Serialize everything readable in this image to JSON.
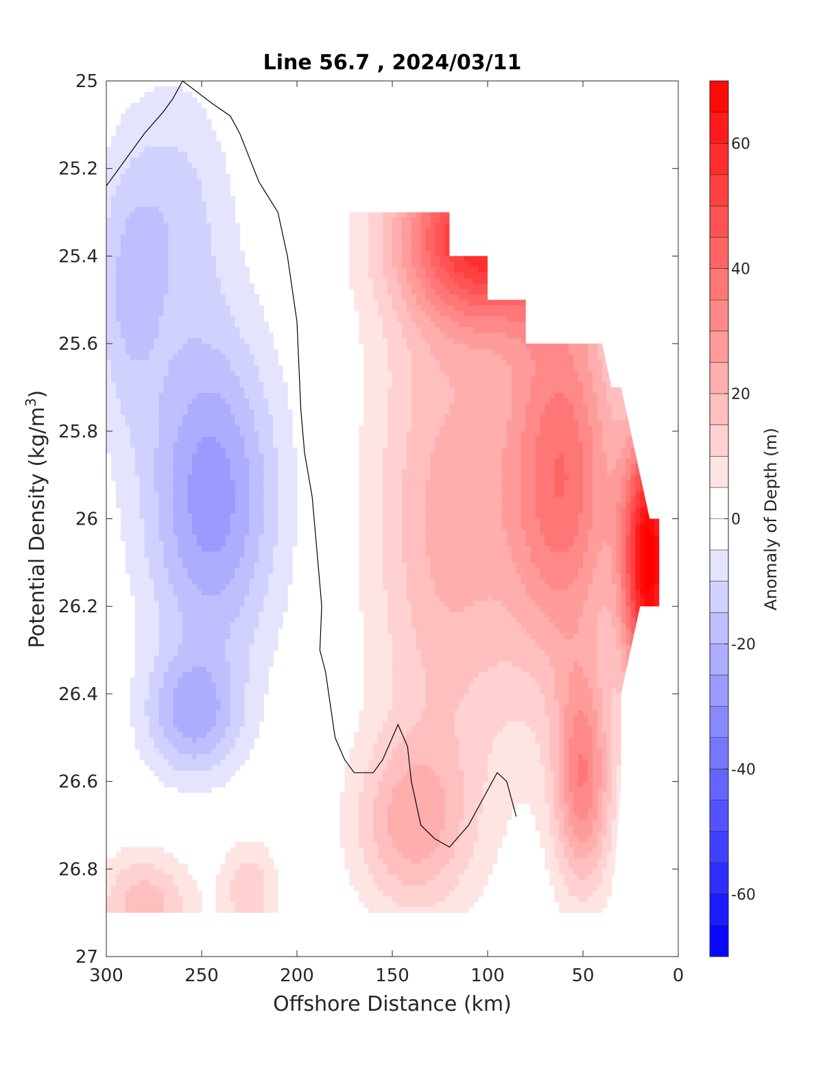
{
  "chart_data": {
    "type": "heatmap",
    "subtype": "filled-contour",
    "title": "Line 56.7 , 2024/03/11",
    "xlabel": "Offshore Distance (km)",
    "ylabel": "Potential Density (kg/m",
    "ylabel_sup": "3",
    "ylabel_end": ")",
    "colorbar_label": "Anomaly of Depth (m)",
    "x_axis": {
      "reversed": true,
      "lim": [
        0,
        300
      ],
      "ticks": [
        300,
        250,
        200,
        150,
        100,
        50,
        0
      ],
      "tick_labels": [
        "300",
        "250",
        "200",
        "150",
        "100",
        "50",
        "0"
      ]
    },
    "y_axis": {
      "reversed": true,
      "lim": [
        25,
        27
      ],
      "ticks": [
        25,
        25.2,
        25.4,
        25.6,
        25.8,
        26,
        26.2,
        26.4,
        26.6,
        26.8,
        27
      ],
      "tick_labels": [
        "25",
        "25.2",
        "25.4",
        "25.6",
        "25.8",
        "26",
        "26.2",
        "26.4",
        "26.6",
        "26.8",
        "27"
      ]
    },
    "colorbar": {
      "lim": [
        -70,
        70
      ],
      "step": 5,
      "colormap": "blue-white-red",
      "ticks": [
        -60,
        -40,
        -20,
        0,
        20,
        40,
        60
      ],
      "tick_labels": [
        "-60",
        "-40",
        "-20",
        "0",
        "20",
        "40",
        "60"
      ]
    },
    "data_coverage_outline": [
      [
        300,
        25
      ],
      [
        200,
        25
      ],
      [
        200,
        25.1
      ],
      [
        185,
        25.1
      ],
      [
        185,
        25.2
      ],
      [
        175,
        25.2
      ],
      [
        175,
        25.3
      ],
      [
        120,
        25.3
      ],
      [
        120,
        25.4
      ],
      [
        100,
        25.4
      ],
      [
        100,
        25.5
      ],
      [
        80,
        25.5
      ],
      [
        80,
        25.6
      ],
      [
        40,
        25.6
      ],
      [
        35,
        25.7
      ],
      [
        30,
        25.7
      ],
      [
        15,
        26
      ],
      [
        10,
        26
      ],
      [
        10,
        26.2
      ],
      [
        20,
        26.2
      ],
      [
        30,
        26.4
      ],
      [
        30,
        26.6
      ],
      [
        35,
        26.9
      ],
      [
        300,
        26.9
      ]
    ],
    "zero_contour": [
      [
        300,
        25.24
      ],
      [
        290,
        25.18
      ],
      [
        280,
        25.12
      ],
      [
        270,
        25.07
      ],
      [
        265,
        25.04
      ],
      [
        260,
        25.0
      ],
      [
        245,
        25.05
      ],
      [
        235,
        25.08
      ],
      [
        230,
        25.12
      ],
      [
        220,
        25.23
      ],
      [
        210,
        25.3
      ],
      [
        205,
        25.4
      ],
      [
        200,
        25.55
      ],
      [
        198,
        25.75
      ],
      [
        196,
        25.85
      ],
      [
        192,
        25.95
      ],
      [
        190,
        26.05
      ],
      [
        188,
        26.15
      ],
      [
        187,
        26.2
      ],
      [
        188,
        26.3
      ],
      [
        185,
        26.35
      ],
      [
        180,
        26.5
      ],
      [
        175,
        26.55
      ],
      [
        170,
        26.58
      ],
      [
        160,
        26.58
      ],
      [
        155,
        26.55
      ],
      [
        150,
        26.5
      ],
      [
        147,
        26.47
      ],
      [
        142,
        26.52
      ],
      [
        140,
        26.6
      ],
      [
        135,
        26.7
      ],
      [
        128,
        26.73
      ],
      [
        120,
        26.75
      ],
      [
        110,
        26.7
      ],
      [
        100,
        26.62
      ],
      [
        95,
        26.58
      ],
      [
        90,
        26.6
      ],
      [
        85,
        26.68
      ]
    ],
    "anomaly_features": [
      {
        "kind": "negative-core",
        "x": 245,
        "y": 25.95,
        "peak": -28,
        "sx": 35,
        "sy": 0.38
      },
      {
        "kind": "negative-lobe",
        "x": 255,
        "y": 26.45,
        "peak": -20,
        "sx": 25,
        "sy": 0.14
      },
      {
        "kind": "negative-shallow",
        "x": 265,
        "y": 25.3,
        "peak": -12,
        "sx": 30,
        "sy": 0.3
      },
      {
        "kind": "negative-west",
        "x": 290,
        "y": 25.5,
        "peak": -12,
        "sx": 18,
        "sy": 0.3
      },
      {
        "kind": "positive-coastal",
        "x": 15,
        "y": 26.1,
        "peak": 70,
        "sx": 14,
        "sy": 0.3
      },
      {
        "kind": "positive-surface",
        "x": 100,
        "y": 25.35,
        "peak": 55,
        "sx": 45,
        "sy": 0.2
      },
      {
        "kind": "positive-band",
        "x": 60,
        "y": 25.9,
        "peak": 38,
        "sx": 30,
        "sy": 0.45
      },
      {
        "kind": "positive-mid",
        "x": 120,
        "y": 26.0,
        "peak": 22,
        "sx": 40,
        "sy": 0.6
      },
      {
        "kind": "positive-deep",
        "x": 50,
        "y": 26.6,
        "peak": 32,
        "sx": 15,
        "sy": 0.25
      },
      {
        "kind": "positive-deep-mid",
        "x": 140,
        "y": 26.7,
        "peak": 20,
        "sx": 30,
        "sy": 0.2
      },
      {
        "kind": "positive-deep-west",
        "x": 280,
        "y": 26.88,
        "peak": 18,
        "sx": 25,
        "sy": 0.12
      },
      {
        "kind": "positive-deep-centre",
        "x": 225,
        "y": 26.85,
        "peak": 14,
        "sx": 15,
        "sy": 0.12
      }
    ]
  }
}
